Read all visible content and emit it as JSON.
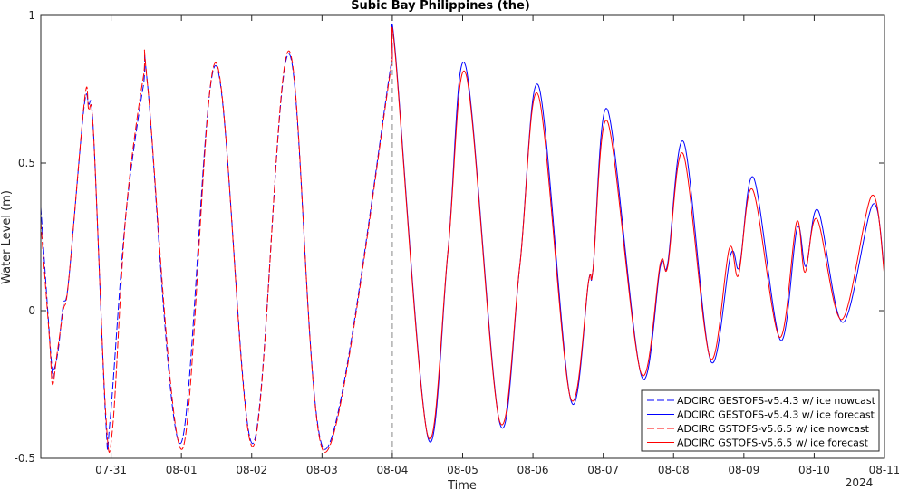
{
  "chart_data": {
    "type": "line",
    "title": "Subic Bay Philippines (the)",
    "xlabel": "Time",
    "ylabel": "Water Level (m)",
    "ylim": [
      -0.5,
      1
    ],
    "yticks": [
      -0.5,
      0,
      0.5,
      1
    ],
    "yticklabels": [
      "-0.5",
      "0",
      "0.5",
      "1"
    ],
    "x_range_days": [
      "2024-07-30 00:00",
      "2024-08-11 00:00"
    ],
    "xtick_dates": [
      "2024-07-31",
      "2024-08-01",
      "2024-08-02",
      "2024-08-03",
      "2024-08-04",
      "2024-08-05",
      "2024-08-06",
      "2024-08-07",
      "2024-08-08",
      "2024-08-09",
      "2024-08-10",
      "2024-08-11"
    ],
    "xticklabels": [
      "07-31",
      "08-01",
      "08-02",
      "08-03",
      "08-04",
      "08-05",
      "08-06",
      "08-07",
      "08-08",
      "08-09",
      "08-10",
      "08-11"
    ],
    "x_year_label": "2024",
    "forecast_start": "2024-08-04 00:00",
    "legend_position": "bottom-right",
    "grid": false,
    "series": [
      {
        "name": "ADCIRC GESTOFS-v5.4.3 w/ ice nowcast",
        "color": "#0000ff",
        "style": "dashed",
        "points": [
          [
            "2024-07-30 00:00",
            0.35
          ],
          [
            "2024-07-30 03:40",
            -0.18
          ],
          [
            "2024-07-30 04:30",
            -0.2
          ],
          [
            "2024-07-30 06:00",
            -0.13
          ],
          [
            "2024-07-30 07:40",
            0.02
          ],
          [
            "2024-07-30 09:30",
            0.1
          ],
          [
            "2024-07-30 14:40",
            0.68
          ],
          [
            "2024-07-30 16:20",
            0.7
          ],
          [
            "2024-07-30 18:00",
            0.6
          ],
          [
            "2024-07-30 22:10",
            -0.37
          ],
          [
            "2024-07-30 23:40",
            -0.37
          ],
          [
            "2024-07-31 05:00",
            0.32
          ],
          [
            "2024-07-31 11:00",
            0.76
          ],
          [
            "2024-07-31 12:30",
            0.76
          ],
          [
            "2024-07-31 23:40",
            -0.45
          ],
          [
            "2024-08-01 11:40",
            0.83
          ],
          [
            "2024-08-02 00:20",
            -0.45
          ],
          [
            "2024-08-02 12:40",
            0.87
          ],
          [
            "2024-08-03 01:00",
            -0.47
          ],
          [
            "2024-08-04 00:00",
            0.86
          ]
        ]
      },
      {
        "name": "ADCIRC GESTOFS-v5.4.3 w/ ice forecast",
        "color": "#0000ff",
        "style": "solid",
        "points": [
          [
            "2024-08-04 00:00",
            0.86
          ],
          [
            "2024-08-04 01:00",
            0.88
          ],
          [
            "2024-08-04 12:10",
            -0.43
          ],
          [
            "2024-08-04 19:00",
            0.2
          ],
          [
            "2024-08-05 01:00",
            0.83
          ],
          [
            "2024-08-05 12:40",
            -0.38
          ],
          [
            "2024-08-05 19:30",
            0.15
          ],
          [
            "2024-08-06 02:00",
            0.76
          ],
          [
            "2024-08-06 12:50",
            -0.3
          ],
          [
            "2024-08-06 19:00",
            0.1
          ],
          [
            "2024-08-06 20:30",
            0.14
          ],
          [
            "2024-08-07 01:30",
            0.68
          ],
          [
            "2024-08-07 13:00",
            -0.22
          ],
          [
            "2024-08-07 19:30",
            0.15
          ],
          [
            "2024-08-07 22:00",
            0.16
          ],
          [
            "2024-08-08 03:30",
            0.57
          ],
          [
            "2024-08-08 12:40",
            -0.17
          ],
          [
            "2024-08-08 19:30",
            0.19
          ],
          [
            "2024-08-08 22:30",
            0.15
          ],
          [
            "2024-08-09 03:20",
            0.45
          ],
          [
            "2024-08-09 12:30",
            -0.1
          ],
          [
            "2024-08-09 18:10",
            0.28
          ],
          [
            "2024-08-09 21:10",
            0.15
          ],
          [
            "2024-08-10 01:20",
            0.34
          ],
          [
            "2024-08-10 09:50",
            -0.04
          ],
          [
            "2024-08-10 20:00",
            0.36
          ],
          [
            "2024-08-11 00:00",
            0.13
          ]
        ]
      },
      {
        "name": "ADCIRC GSTOFS-v5.6.5 w/ ice nowcast",
        "color": "#ff0000",
        "style": "dashed",
        "points": [
          [
            "2024-07-30 00:00",
            0.3
          ],
          [
            "2024-07-30 03:00",
            -0.1
          ],
          [
            "2024-07-30 04:00",
            -0.25
          ],
          [
            "2024-07-30 05:30",
            -0.15
          ],
          [
            "2024-07-30 07:40",
            0.0
          ],
          [
            "2024-07-30 09:30",
            0.1
          ],
          [
            "2024-07-30 15:00",
            0.72
          ],
          [
            "2024-07-30 16:20",
            0.68
          ],
          [
            "2024-07-30 18:00",
            0.6
          ],
          [
            "2024-07-30 22:10",
            -0.35
          ],
          [
            "2024-07-31 00:30",
            -0.4
          ],
          [
            "2024-07-31 05:00",
            0.32
          ],
          [
            "2024-07-31 11:00",
            0.79
          ],
          [
            "2024-07-31 12:30",
            0.76
          ],
          [
            "2024-08-01 00:10",
            -0.47
          ],
          [
            "2024-08-01 11:40",
            0.84
          ],
          [
            "2024-08-02 00:20",
            -0.46
          ],
          [
            "2024-08-02 12:40",
            0.88
          ],
          [
            "2024-08-03 01:00",
            -0.48
          ],
          [
            "2024-08-04 00:00",
            0.85
          ]
        ]
      },
      {
        "name": "ADCIRC GSTOFS-v5.6.5 w/ ice forecast",
        "color": "#ff0000",
        "style": "solid",
        "points": [
          [
            "2024-08-04 00:00",
            0.85
          ],
          [
            "2024-08-04 01:00",
            0.87
          ],
          [
            "2024-08-04 12:00",
            -0.42
          ],
          [
            "2024-08-04 19:00",
            0.2
          ],
          [
            "2024-08-05 01:10",
            0.8
          ],
          [
            "2024-08-05 12:30",
            -0.37
          ],
          [
            "2024-08-05 19:30",
            0.15
          ],
          [
            "2024-08-06 01:50",
            0.73
          ],
          [
            "2024-08-06 12:40",
            -0.29
          ],
          [
            "2024-08-06 19:00",
            0.1
          ],
          [
            "2024-08-06 20:30",
            0.14
          ],
          [
            "2024-08-07 01:30",
            0.64
          ],
          [
            "2024-08-07 12:50",
            -0.21
          ],
          [
            "2024-08-07 19:30",
            0.16
          ],
          [
            "2024-08-07 22:00",
            0.15
          ],
          [
            "2024-08-08 03:20",
            0.53
          ],
          [
            "2024-08-08 12:30",
            -0.16
          ],
          [
            "2024-08-08 19:00",
            0.21
          ],
          [
            "2024-08-08 22:10",
            0.12
          ],
          [
            "2024-08-09 03:00",
            0.41
          ],
          [
            "2024-08-09 12:10",
            -0.09
          ],
          [
            "2024-08-09 18:00",
            0.3
          ],
          [
            "2024-08-09 20:50",
            0.13
          ],
          [
            "2024-08-10 01:00",
            0.31
          ],
          [
            "2024-08-10 09:30",
            -0.03
          ],
          [
            "2024-08-10 19:40",
            0.39
          ],
          [
            "2024-08-11 00:00",
            0.12
          ]
        ]
      }
    ]
  }
}
